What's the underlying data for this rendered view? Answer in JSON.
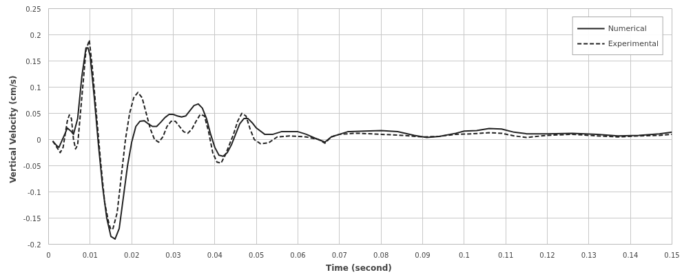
{
  "chart_data": {
    "type": "line",
    "xlabel": "Time  (second)",
    "ylabel": "Vertical  Velocity  (cm/s)",
    "xlim": [
      0,
      0.15
    ],
    "xticks": [
      0,
      0.01,
      0.02,
      0.03,
      0.04,
      0.05,
      0.06,
      0.07,
      0.08,
      0.09,
      0.1,
      0.11,
      0.12,
      0.13,
      0.14,
      0.15
    ],
    "ylim": [
      -0.2,
      0.25
    ],
    "yticks": [
      -0.2,
      -0.15,
      -0.1,
      -0.05,
      0,
      0.05,
      0.1,
      0.15,
      0.2,
      0.25
    ],
    "grid": true,
    "legend": "top right",
    "marker": "none",
    "series": [
      {
        "name": "Numerical",
        "color": "#222222",
        "line_style": "solid",
        "x": [
          0.001,
          0.002,
          0.0025,
          0.004,
          0.0045,
          0.0055,
          0.006,
          0.007,
          0.008,
          0.009,
          0.0095,
          0.01,
          0.011,
          0.012,
          0.013,
          0.014,
          0.015,
          0.016,
          0.017,
          0.018,
          0.019,
          0.02,
          0.021,
          0.022,
          0.023,
          0.024,
          0.025,
          0.026,
          0.027,
          0.028,
          0.029,
          0.03,
          0.031,
          0.032,
          0.033,
          0.034,
          0.035,
          0.036,
          0.037,
          0.038,
          0.039,
          0.04,
          0.041,
          0.042,
          0.043,
          0.044,
          0.045,
          0.046,
          0.047,
          0.048,
          0.049,
          0.05,
          0.052,
          0.054,
          0.056,
          0.06,
          0.062,
          0.064,
          0.0665,
          0.068,
          0.07,
          0.072,
          0.076,
          0.08,
          0.084,
          0.088,
          0.091,
          0.094,
          0.098,
          0.1,
          0.103,
          0.106,
          0.109,
          0.112,
          0.115,
          0.12,
          0.126,
          0.132,
          0.137,
          0.142,
          0.147,
          0.15
        ],
        "values": [
          -0.003,
          -0.012,
          -0.015,
          0.012,
          0.022,
          0.015,
          0.01,
          0.04,
          0.12,
          0.175,
          0.175,
          0.16,
          0.08,
          -0.01,
          -0.09,
          -0.15,
          -0.185,
          -0.19,
          -0.17,
          -0.11,
          -0.05,
          -0.005,
          0.025,
          0.035,
          0.036,
          0.03,
          0.025,
          0.025,
          0.033,
          0.042,
          0.048,
          0.048,
          0.045,
          0.043,
          0.045,
          0.055,
          0.065,
          0.068,
          0.06,
          0.04,
          0.01,
          -0.015,
          -0.03,
          -0.032,
          -0.025,
          -0.01,
          0.01,
          0.03,
          0.04,
          0.04,
          0.032,
          0.022,
          0.01,
          0.01,
          0.015,
          0.015,
          0.01,
          0.003,
          -0.005,
          0.005,
          0.01,
          0.015,
          0.016,
          0.017,
          0.015,
          0.008,
          0.004,
          0.006,
          0.012,
          0.016,
          0.017,
          0.021,
          0.02,
          0.014,
          0.011,
          0.011,
          0.012,
          0.01,
          0.007,
          0.008,
          0.011,
          0.014
        ]
      },
      {
        "name": "Experimental",
        "color": "#222222",
        "line_style": "dashed",
        "x": [
          0.001,
          0.002,
          0.0028,
          0.0035,
          0.0045,
          0.005,
          0.0055,
          0.006,
          0.0065,
          0.007,
          0.008,
          0.009,
          0.0098,
          0.0105,
          0.0115,
          0.0125,
          0.0135,
          0.0145,
          0.015,
          0.0155,
          0.0165,
          0.0175,
          0.0185,
          0.0195,
          0.0205,
          0.0215,
          0.0225,
          0.0235,
          0.0245,
          0.0255,
          0.0265,
          0.0275,
          0.0285,
          0.0295,
          0.0305,
          0.0315,
          0.0325,
          0.0335,
          0.0345,
          0.0355,
          0.0365,
          0.0375,
          0.0385,
          0.0395,
          0.0405,
          0.0415,
          0.0425,
          0.0435,
          0.0445,
          0.0455,
          0.0465,
          0.0475,
          0.0485,
          0.0495,
          0.051,
          0.053,
          0.055,
          0.058,
          0.062,
          0.065,
          0.0665,
          0.068,
          0.07,
          0.074,
          0.08,
          0.085,
          0.09,
          0.094,
          0.098,
          0.102,
          0.106,
          0.109,
          0.112,
          0.115,
          0.12,
          0.126,
          0.132,
          0.137,
          0.142,
          0.147,
          0.15
        ],
        "values": [
          -0.003,
          -0.015,
          -0.025,
          -0.015,
          0.035,
          0.047,
          0.04,
          0.0,
          -0.018,
          -0.01,
          0.08,
          0.17,
          0.19,
          0.14,
          0.05,
          -0.04,
          -0.12,
          -0.16,
          -0.172,
          -0.17,
          -0.14,
          -0.07,
          0.0,
          0.05,
          0.08,
          0.09,
          0.08,
          0.05,
          0.02,
          0.0,
          -0.005,
          0.005,
          0.025,
          0.035,
          0.035,
          0.025,
          0.015,
          0.012,
          0.02,
          0.035,
          0.048,
          0.045,
          0.015,
          -0.025,
          -0.043,
          -0.045,
          -0.03,
          -0.01,
          0.01,
          0.035,
          0.05,
          0.045,
          0.02,
          0.0,
          -0.008,
          -0.006,
          0.005,
          0.007,
          0.005,
          0.0,
          -0.007,
          0.005,
          0.01,
          0.012,
          0.01,
          0.008,
          0.005,
          0.006,
          0.01,
          0.011,
          0.013,
          0.012,
          0.007,
          0.004,
          0.008,
          0.01,
          0.007,
          0.005,
          0.007,
          0.008,
          0.01
        ]
      }
    ]
  }
}
